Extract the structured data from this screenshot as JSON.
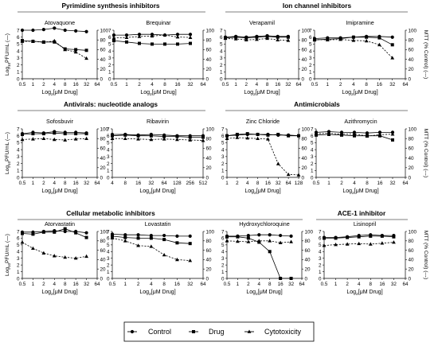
{
  "figure": {
    "group_titles": [
      "Pyrimidine synthesis inhibitors",
      "Ion channel inhibitors",
      "Antivirals: nucleotide analogs",
      "Antimicrobials",
      "Cellular metabolic inhibitors",
      "ACE-1 inhibitor"
    ],
    "ylabel_left": "Log10PFU/mL (—)",
    "ylabel_right": "MTT (% Control) (---)",
    "xlabel": "Log2[μM Drug]",
    "legend": [
      {
        "label": "Control",
        "marker": "circle"
      },
      {
        "label": "Drug",
        "marker": "square"
      },
      {
        "label": "Cytotoxicity",
        "marker": "triangle"
      }
    ]
  },
  "chart_data": [
    {
      "type": "line",
      "title": "Atovaquone",
      "x": [
        0.5,
        1,
        2,
        4,
        8,
        16,
        32
      ],
      "xticks": [
        "0.5",
        "1",
        "2",
        "4",
        "8",
        "16",
        "32",
        "64"
      ],
      "ylim": [
        0,
        7
      ],
      "y2lim": [
        0,
        100
      ],
      "series": [
        {
          "name": "Control",
          "axis": "left",
          "values": [
            7.0,
            7.0,
            7.1,
            7.3,
            7.0,
            6.9,
            6.8
          ]
        },
        {
          "name": "Drug",
          "axis": "left",
          "values": [
            5.5,
            5.4,
            5.3,
            5.3,
            4.3,
            4.2,
            4.1
          ]
        },
        {
          "name": "Cytotoxicity",
          "axis": "right",
          "values": [
            77,
            77,
            75,
            78,
            60,
            55,
            42
          ]
        }
      ]
    },
    {
      "type": "line",
      "title": "Brequinar",
      "x": [
        0.5,
        1,
        2,
        4,
        8,
        16,
        32
      ],
      "xticks": [
        "0.5",
        "1",
        "2",
        "4",
        "8",
        "16",
        "32",
        "64"
      ],
      "ylim": [
        0,
        7
      ],
      "y2lim": [
        0,
        100
      ],
      "series": [
        {
          "name": "Control",
          "axis": "left",
          "values": [
            6.3,
            6.3,
            6.4,
            6.4,
            6.3,
            6.4,
            6.4
          ]
        },
        {
          "name": "Drug",
          "axis": "left",
          "values": [
            5.5,
            5.3,
            5.1,
            5.0,
            5.0,
            5.0,
            5.1
          ]
        },
        {
          "name": "Cytotoxicity",
          "axis": "right",
          "values": [
            84,
            85,
            87,
            88,
            90,
            86,
            85
          ]
        }
      ]
    },
    {
      "type": "line",
      "title": "Verapamil",
      "x": [
        0.5,
        1,
        2,
        4,
        8,
        16,
        32
      ],
      "xticks": [
        "0.5",
        "1",
        "2",
        "4",
        "8",
        "16",
        "32",
        "64"
      ],
      "ylim": [
        0,
        7
      ],
      "y2lim": [
        0,
        100
      ],
      "series": [
        {
          "name": "Control",
          "axis": "left",
          "values": [
            6.0,
            6.1,
            6.0,
            6.1,
            6.2,
            6.1,
            6.1
          ]
        },
        {
          "name": "Drug",
          "axis": "left",
          "values": [
            5.9,
            6.0,
            5.9,
            6.0,
            6.1,
            6.0,
            6.0
          ]
        },
        {
          "name": "Cytotoxicity",
          "axis": "right",
          "values": [
            83,
            82,
            80,
            81,
            83,
            80,
            79
          ]
        }
      ]
    },
    {
      "type": "line",
      "title": "Imipramine",
      "x": [
        0.5,
        1,
        2,
        4,
        8,
        16,
        32
      ],
      "xticks": [
        "0.5",
        "1",
        "2",
        "4",
        "8",
        "16",
        "32",
        "64"
      ],
      "ylim": [
        0,
        7
      ],
      "y2lim": [
        0,
        100
      ],
      "series": [
        {
          "name": "Control",
          "axis": "left",
          "values": [
            5.8,
            5.9,
            5.9,
            6.0,
            6.1,
            6.1,
            6.0
          ]
        },
        {
          "name": "Drug",
          "axis": "left",
          "values": [
            5.6,
            5.7,
            5.8,
            6.0,
            6.0,
            5.9,
            4.9
          ]
        },
        {
          "name": "Cytotoxicity",
          "axis": "right",
          "values": [
            81,
            80,
            81,
            79,
            78,
            70,
            43
          ]
        }
      ]
    },
    {
      "type": "line",
      "title": "Sofosbuvir",
      "x": [
        0.5,
        1,
        2,
        4,
        8,
        16,
        32
      ],
      "xticks": [
        "0.5",
        "1",
        "2",
        "4",
        "8",
        "16",
        "32",
        "64"
      ],
      "ylim": [
        0,
        7
      ],
      "y2lim": [
        0,
        100
      ],
      "series": [
        {
          "name": "Control",
          "axis": "left",
          "values": [
            6.3,
            6.5,
            6.4,
            6.6,
            6.5,
            6.5,
            6.4
          ]
        },
        {
          "name": "Drug",
          "axis": "left",
          "values": [
            6.2,
            6.3,
            6.3,
            6.4,
            6.3,
            6.3,
            6.3
          ]
        },
        {
          "name": "Cytotoxicity",
          "axis": "right",
          "values": [
            78,
            79,
            80,
            78,
            77,
            79,
            80
          ]
        }
      ]
    },
    {
      "type": "line",
      "title": "Ribavirin",
      "x": [
        4,
        8,
        16,
        32,
        64,
        128,
        256,
        512
      ],
      "xticks": [
        "4",
        "8",
        "16",
        "32",
        "64",
        "128",
        "256",
        "512"
      ],
      "ylim": [
        0,
        7
      ],
      "y2lim": [
        0,
        100
      ],
      "series": [
        {
          "name": "Control",
          "axis": "left",
          "values": [
            6.2,
            6.2,
            6.1,
            6.2,
            6.1,
            6.0,
            6.0,
            6.0
          ]
        },
        {
          "name": "Drug",
          "axis": "left",
          "values": [
            6.0,
            6.1,
            6.0,
            6.0,
            5.9,
            5.9,
            5.8,
            5.8
          ]
        },
        {
          "name": "Cytotoxicity",
          "axis": "right",
          "values": [
            80,
            80,
            79,
            78,
            79,
            78,
            77,
            76
          ]
        }
      ]
    },
    {
      "type": "line",
      "title": "Zinc Chloride",
      "x": [
        1,
        2,
        4,
        8,
        16,
        32,
        64,
        128
      ],
      "xticks": [
        "1",
        "2",
        "4",
        "8",
        "16",
        "32",
        "64",
        "128"
      ],
      "ylim": [
        0,
        7
      ],
      "y2lim": [
        0,
        100
      ],
      "series": [
        {
          "name": "Control",
          "axis": "left",
          "values": [
            6.0,
            6.1,
            6.2,
            6.2,
            6.2,
            6.1,
            6.1,
            6.0
          ]
        },
        {
          "name": "Drug",
          "axis": "left",
          "values": [
            6.0,
            6.2,
            6.3,
            6.2,
            6.1,
            6.2,
            6.0,
            6.0
          ]
        },
        {
          "name": "Cytotoxicity",
          "axis": "right",
          "values": [
            80,
            82,
            81,
            80,
            79,
            28,
            6,
            5
          ]
        }
      ]
    },
    {
      "type": "line",
      "title": "Azithromycin",
      "x": [
        0.5,
        1,
        2,
        4,
        8,
        16,
        32
      ],
      "xticks": [
        "0.5",
        "1",
        "2",
        "4",
        "8",
        "16",
        "32",
        "64"
      ],
      "ylim": [
        0,
        7
      ],
      "y2lim": [
        0,
        100
      ],
      "series": [
        {
          "name": "Control",
          "axis": "left",
          "values": [
            6.5,
            6.6,
            6.5,
            6.5,
            6.4,
            6.5,
            6.5
          ]
        },
        {
          "name": "Drug",
          "axis": "left",
          "values": [
            6.1,
            6.2,
            6.1,
            6.0,
            6.0,
            6.0,
            5.4
          ]
        },
        {
          "name": "Cytotoxicity",
          "axis": "right",
          "values": [
            90,
            91,
            89,
            90,
            85,
            88,
            89
          ]
        }
      ]
    },
    {
      "type": "line",
      "title": "Atorvastatin",
      "x": [
        0.5,
        1,
        2,
        4,
        8,
        16,
        32
      ],
      "xticks": [
        "0.5",
        "1",
        "2",
        "4",
        "8",
        "16",
        "32",
        "64"
      ],
      "ylim": [
        0,
        7
      ],
      "y2lim": [
        0,
        100
      ],
      "series": [
        {
          "name": "Control",
          "axis": "left",
          "values": [
            6.9,
            6.9,
            7.0,
            7.1,
            7.0,
            7.0,
            6.8
          ]
        },
        {
          "name": "Drug",
          "axis": "left",
          "values": [
            6.7,
            6.6,
            6.9,
            6.9,
            7.4,
            6.8,
            6.1
          ]
        },
        {
          "name": "Cytotoxicity",
          "axis": "right",
          "values": [
            77,
            64,
            54,
            48,
            45,
            43,
            47
          ]
        }
      ]
    },
    {
      "type": "line",
      "title": "Lovastatin",
      "x": [
        0.5,
        1,
        2,
        4,
        8,
        16,
        32
      ],
      "xticks": [
        "0.5",
        "1",
        "2",
        "4",
        "8",
        "16",
        "32",
        "64"
      ],
      "ylim": [
        0,
        7
      ],
      "y2lim": [
        0,
        100
      ],
      "series": [
        {
          "name": "Control",
          "axis": "left",
          "values": [
            6.6,
            6.5,
            6.5,
            6.4,
            6.4,
            6.3,
            6.3
          ]
        },
        {
          "name": "Drug",
          "axis": "left",
          "values": [
            6.3,
            6.1,
            6.0,
            6.0,
            5.8,
            5.3,
            5.2
          ]
        },
        {
          "name": "Cytotoxicity",
          "axis": "right",
          "values": [
            86,
            80,
            70,
            68,
            50,
            40,
            38
          ]
        }
      ]
    },
    {
      "type": "line",
      "title": "Hydroxychloroquine",
      "x": [
        0.5,
        1,
        2,
        4,
        8,
        16,
        32
      ],
      "xticks": [
        "0.5",
        "1",
        "2",
        "4",
        "8",
        "16",
        "32",
        "64"
      ],
      "ylim": [
        0,
        7
      ],
      "y2lim": [
        0,
        100
      ],
      "series": [
        {
          "name": "Control",
          "axis": "left",
          "values": [
            6.3,
            6.3,
            6.4,
            6.5,
            6.5,
            6.4,
            6.3
          ]
        },
        {
          "name": "Drug",
          "axis": "left",
          "values": [
            6.2,
            6.2,
            6.0,
            5.4,
            4.0,
            0.0,
            0.0
          ]
        },
        {
          "name": "Cytotoxicity",
          "axis": "right",
          "values": [
            80,
            79,
            78,
            80,
            80,
            76,
            78
          ]
        }
      ]
    },
    {
      "type": "line",
      "title": "Lisinopril",
      "x": [
        0.5,
        1,
        2,
        4,
        8,
        16,
        32
      ],
      "xticks": [
        "0.5",
        "1",
        "2",
        "4",
        "8",
        "16",
        "32",
        "64"
      ],
      "ylim": [
        0,
        7
      ],
      "y2lim": [
        0,
        100
      ],
      "series": [
        {
          "name": "Control",
          "axis": "left",
          "values": [
            6.1,
            6.1,
            6.2,
            6.4,
            6.5,
            6.4,
            6.4
          ]
        },
        {
          "name": "Drug",
          "axis": "left",
          "values": [
            6.0,
            6.0,
            6.1,
            6.2,
            6.3,
            6.3,
            6.2
          ]
        },
        {
          "name": "Cytotoxicity",
          "axis": "right",
          "values": [
            70,
            72,
            73,
            74,
            73,
            75,
            77
          ]
        }
      ]
    }
  ]
}
